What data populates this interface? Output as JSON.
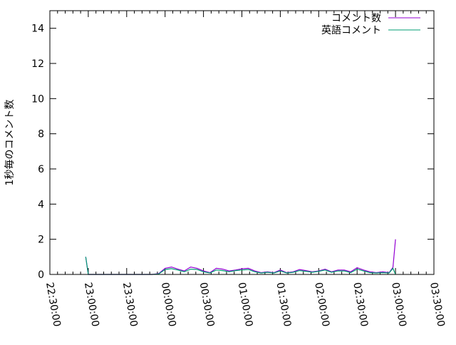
{
  "chart_data": {
    "type": "line",
    "title": "",
    "xlabel": "",
    "ylabel": "1秒毎のコメント数",
    "xlim": [
      "22:30:00",
      "03:30:00"
    ],
    "ylim": [
      0,
      15
    ],
    "xticks": [
      "22:30:00",
      "23:00:00",
      "23:30:00",
      "00:00:00",
      "00:30:00",
      "01:00:00",
      "01:30:00",
      "02:00:00",
      "02:30:00",
      "03:00:00",
      "03:30:00"
    ],
    "yticks": [
      "0",
      "2",
      "4",
      "6",
      "8",
      "10",
      "12",
      "14"
    ],
    "grid": false,
    "legend": "top-right",
    "series": [
      {
        "name": "コメント数",
        "color": "#9400d3",
        "x": [
          "22:58",
          "23:00",
          "23:40",
          "23:45",
          "23:50",
          "23:55",
          "00:00",
          "00:05",
          "00:10",
          "00:15",
          "00:20",
          "00:25",
          "00:30",
          "00:35",
          "00:40",
          "00:45",
          "00:50",
          "00:55",
          "01:00",
          "01:05",
          "01:10",
          "01:15",
          "01:20",
          "01:25",
          "01:30",
          "01:35",
          "01:40",
          "01:45",
          "01:50",
          "01:55",
          "02:00",
          "02:05",
          "02:10",
          "02:15",
          "02:20",
          "02:25",
          "02:30",
          "02:35",
          "02:40",
          "02:45",
          "02:50",
          "02:55",
          "02:58",
          "03:00"
        ],
        "y": [
          1.0,
          0,
          0,
          0,
          0,
          0.05,
          0.35,
          0.42,
          0.3,
          0.2,
          0.42,
          0.35,
          0.2,
          0.1,
          0.35,
          0.3,
          0.2,
          0.25,
          0.32,
          0.35,
          0.2,
          0.1,
          0.15,
          0.1,
          0.25,
          0.1,
          0.15,
          0.28,
          0.22,
          0.15,
          0.2,
          0.3,
          0.15,
          0.25,
          0.25,
          0.15,
          0.38,
          0.25,
          0.15,
          0.1,
          0.15,
          0.1,
          0.4,
          2.0
        ]
      },
      {
        "name": "英語コメント",
        "color": "#009e73",
        "x": [
          "22:58",
          "23:00",
          "23:40",
          "23:45",
          "23:50",
          "23:55",
          "00:00",
          "00:05",
          "00:10",
          "00:15",
          "00:20",
          "00:25",
          "00:30",
          "00:35",
          "00:40",
          "00:45",
          "00:50",
          "00:55",
          "01:00",
          "01:05",
          "01:10",
          "01:15",
          "01:20",
          "01:25",
          "01:30",
          "01:35",
          "01:40",
          "01:45",
          "01:50",
          "01:55",
          "02:00",
          "02:05",
          "02:10",
          "02:15",
          "02:20",
          "02:25",
          "02:30",
          "02:35",
          "02:40",
          "02:45",
          "02:50",
          "02:55",
          "02:58",
          "03:00"
        ],
        "y": [
          1.0,
          0,
          0,
          0,
          0,
          0.03,
          0.28,
          0.33,
          0.25,
          0.15,
          0.3,
          0.28,
          0.15,
          0.08,
          0.25,
          0.22,
          0.15,
          0.22,
          0.25,
          0.28,
          0.15,
          0.08,
          0.12,
          0.08,
          0.2,
          0.08,
          0.12,
          0.22,
          0.18,
          0.12,
          0.18,
          0.25,
          0.12,
          0.2,
          0.2,
          0.1,
          0.3,
          0.2,
          0.1,
          0.08,
          0.1,
          0.08,
          0.35,
          0
        ]
      }
    ]
  }
}
